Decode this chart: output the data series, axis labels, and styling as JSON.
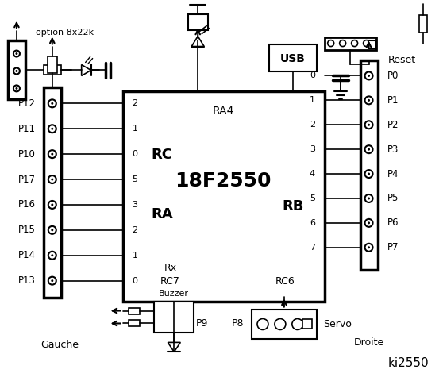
{
  "bg_color": "#ffffff",
  "line_color": "#000000",
  "title": "ki2550",
  "chip_label": "18F2550",
  "chip_sub": "RA4",
  "left_pins_rc": [
    "2",
    "1",
    "0"
  ],
  "left_pins_ra": [
    "5",
    "3",
    "2",
    "1",
    "0"
  ],
  "right_pins_rb": [
    "0",
    "1",
    "2",
    "3",
    "4",
    "5",
    "6",
    "7"
  ],
  "left_labels": [
    "P12",
    "P11",
    "P10",
    "P17",
    "P16",
    "P15",
    "P14",
    "P13"
  ],
  "right_labels": [
    "P0",
    "P1",
    "P2",
    "P3",
    "P4",
    "P5",
    "P6",
    "P7"
  ],
  "bottom_labels": [
    "Buzzer",
    "P9",
    "P8",
    "Servo"
  ],
  "corner_labels": [
    "Gauche",
    "Droite"
  ],
  "option_text": "option 8x22k",
  "reset_text": "Reset",
  "usb_text": "USB",
  "rc_text": "RC",
  "ra_text": "RA",
  "rb_text": "RB",
  "rx_text": "Rx",
  "rc7_text": "RC7",
  "rc6_text": "RC6"
}
